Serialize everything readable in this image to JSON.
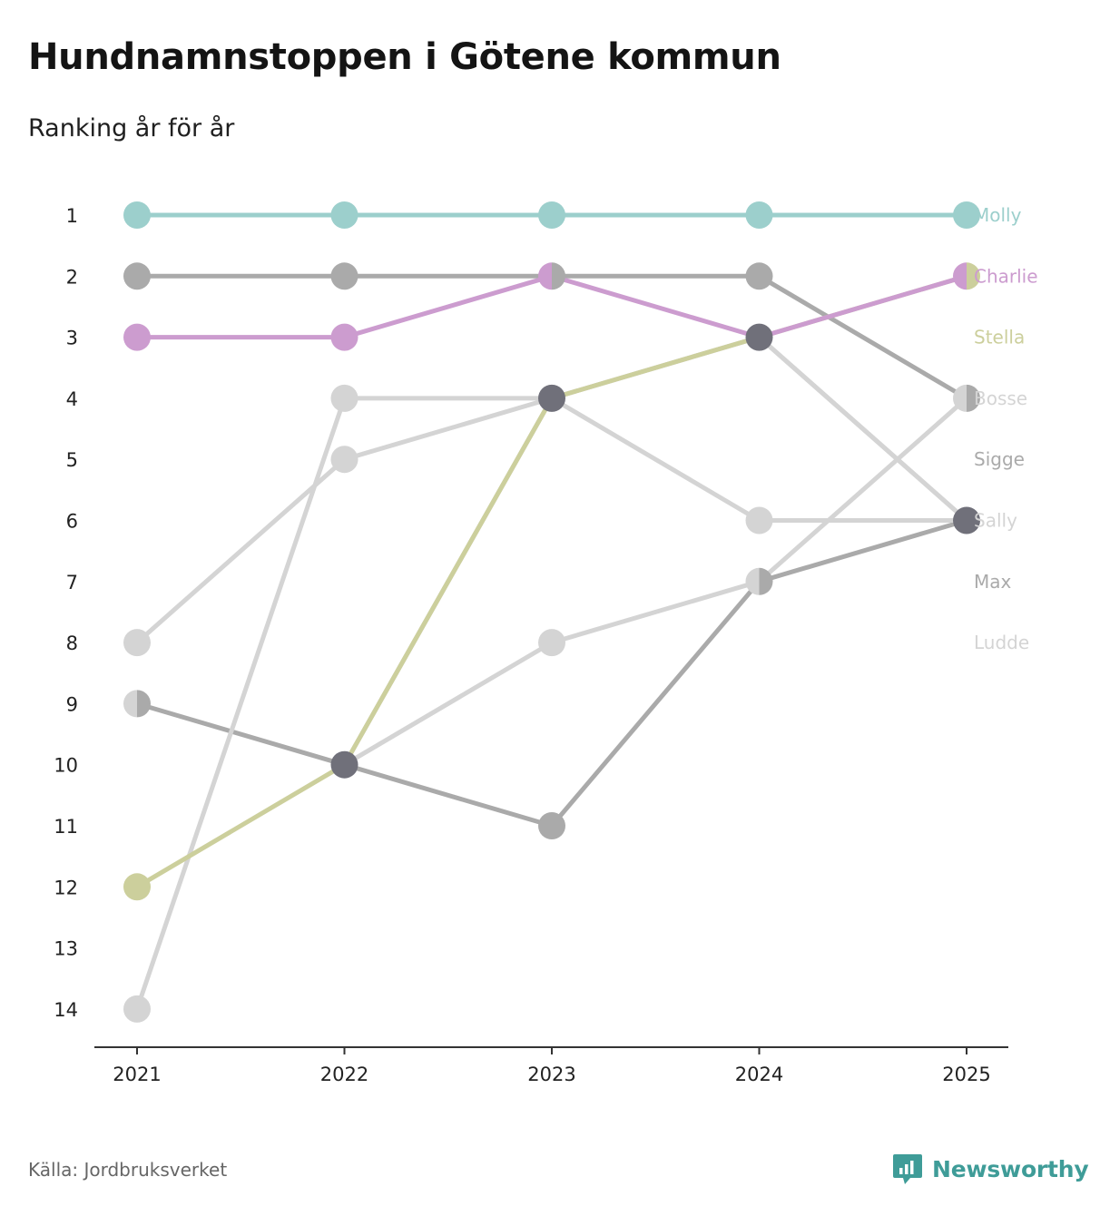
{
  "title": "Hundnamnstoppen i Götene kommun",
  "subtitle": "Ranking år för år",
  "source": "Källa: Jordbruksverket",
  "brand": {
    "name": "Newsworthy",
    "icon": "newsworthy-logo-icon",
    "color": "#3f9c98"
  },
  "chart_data": {
    "type": "line",
    "title": "Hundnamnstoppen i Götene kommun",
    "subtitle": "Ranking år för år",
    "xlabel": "",
    "ylabel": "",
    "x": [
      "2021",
      "2022",
      "2023",
      "2024",
      "2025"
    ],
    "y_ticks": [
      "1",
      "2",
      "3",
      "4",
      "5",
      "6",
      "7",
      "8",
      "9",
      "10",
      "11",
      "12",
      "13",
      "14"
    ],
    "ylim": [
      1,
      14
    ],
    "y_inverted": true,
    "grid": false,
    "series": [
      {
        "name": "Max",
        "color": "#aaaaaa",
        "values": [
          9,
          10,
          11,
          7,
          6
        ]
      },
      {
        "name": "Sigge",
        "color": "#aaaaaa",
        "values": [
          2,
          2,
          2,
          2,
          4
        ]
      },
      {
        "name": "Ludde",
        "color": "#d4d4d4",
        "values": [
          14,
          4,
          4,
          6,
          6
        ]
      },
      {
        "name": "Sally",
        "color": "#d4d4d4",
        "values": [
          null,
          10,
          4,
          3,
          6
        ]
      },
      {
        "name": "Bosse",
        "color": "#d4d4d4",
        "values": [
          8,
          5,
          4,
          3,
          6
        ]
      },
      {
        "name": "Bosse",
        "color": "#d4d4d4",
        "values": [
          null,
          10,
          8,
          7,
          4
        ]
      },
      {
        "name": "Stella",
        "color": "#cccf9c",
        "values": [
          12,
          10,
          4,
          3,
          2
        ]
      },
      {
        "name": "Charlie",
        "color": "#cc9ccf",
        "values": [
          3,
          3,
          2,
          3,
          2
        ]
      },
      {
        "name": "Molly",
        "color": "#9ccfcc",
        "values": [
          1,
          1,
          1,
          1,
          1
        ]
      }
    ],
    "points": [
      {
        "x": "2021",
        "y": 1,
        "color": "#9ccfcc"
      },
      {
        "x": "2022",
        "y": 1,
        "color": "#9ccfcc"
      },
      {
        "x": "2023",
        "y": 1,
        "color": "#9ccfcc"
      },
      {
        "x": "2024",
        "y": 1,
        "color": "#9ccfcc"
      },
      {
        "x": "2025",
        "y": 1,
        "color": "#9ccfcc"
      },
      {
        "x": "2021",
        "y": 2,
        "color": "#aaaaaa"
      },
      {
        "x": "2022",
        "y": 2,
        "color": "#aaaaaa"
      },
      {
        "x": "2023",
        "y": 2,
        "color": "#cc9ccf",
        "color2": "#aaaaaa"
      },
      {
        "x": "2024",
        "y": 2,
        "color": "#aaaaaa"
      },
      {
        "x": "2025",
        "y": 2,
        "color": "#cc9ccf",
        "color2": "#cccf9c"
      },
      {
        "x": "2021",
        "y": 3,
        "color": "#cc9ccf"
      },
      {
        "x": "2022",
        "y": 3,
        "color": "#cc9ccf"
      },
      {
        "x": "2024",
        "y": 3,
        "color": "#70707a"
      },
      {
        "x": "2022",
        "y": 4,
        "color": "#d4d4d4"
      },
      {
        "x": "2023",
        "y": 4,
        "color": "#70707a"
      },
      {
        "x": "2025",
        "y": 4,
        "color": "#d4d4d4",
        "color2": "#aaaaaa"
      },
      {
        "x": "2022",
        "y": 5,
        "color": "#d4d4d4"
      },
      {
        "x": "2024",
        "y": 6,
        "color": "#d4d4d4"
      },
      {
        "x": "2025",
        "y": 6,
        "color": "#70707a"
      },
      {
        "x": "2024",
        "y": 7,
        "color": "#d4d4d4",
        "color2": "#aaaaaa"
      },
      {
        "x": "2021",
        "y": 8,
        "color": "#d4d4d4"
      },
      {
        "x": "2023",
        "y": 8,
        "color": "#d4d4d4"
      },
      {
        "x": "2021",
        "y": 9,
        "color": "#d4d4d4",
        "color2": "#aaaaaa"
      },
      {
        "x": "2022",
        "y": 10,
        "color": "#70707a"
      },
      {
        "x": "2023",
        "y": 11,
        "color": "#aaaaaa"
      },
      {
        "x": "2021",
        "y": 12,
        "color": "#cccf9c"
      },
      {
        "x": "2021",
        "y": 14,
        "color": "#d4d4d4"
      }
    ],
    "end_labels": [
      {
        "name": "Molly",
        "color": "#9ccfcc",
        "y": 1
      },
      {
        "name": "Charlie",
        "color": "#cc9ccf",
        "y": 2
      },
      {
        "name": "Stella",
        "color": "#cccf9c",
        "y": 3
      },
      {
        "name": "Bosse",
        "color": "#d4d4d4",
        "y": 4
      },
      {
        "name": "Sigge",
        "color": "#aaaaaa",
        "y": 5
      },
      {
        "name": "Sally",
        "color": "#d4d4d4",
        "y": 6
      },
      {
        "name": "Max",
        "color": "#aaaaaa",
        "y": 7
      },
      {
        "name": "Ludde",
        "color": "#d4d4d4",
        "y": 8
      }
    ]
  }
}
